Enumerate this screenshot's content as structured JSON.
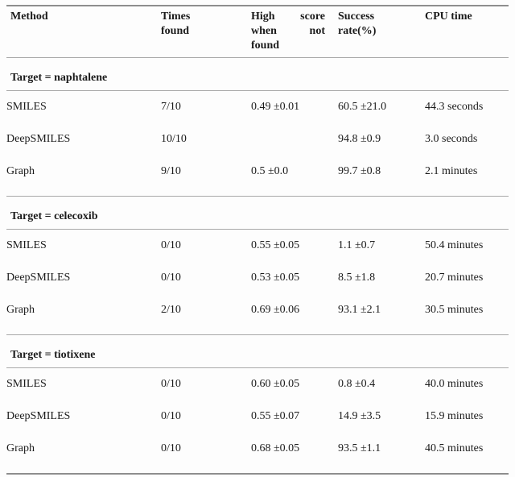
{
  "page": {
    "background_color": "#fdfdfd",
    "text_color": "#1b1b1b",
    "heavy_rule_color": "#8e8e8e",
    "light_rule_color": "#a8a8a8"
  },
  "table": {
    "columns": [
      "Method",
      "Times found",
      "High score when not found",
      "Success rate(%)",
      "CPU time"
    ],
    "sections": [
      {
        "title": "Target = naphtalene",
        "rows": [
          {
            "cells": [
              "SMILES",
              "7/10",
              "0.49 ±0.01",
              "60.5 ±21.0",
              "44.3 seconds"
            ]
          },
          {
            "cells": [
              "DeepSMILES",
              "10/10",
              "",
              "94.8 ±0.9",
              "3.0 seconds"
            ]
          },
          {
            "cells": [
              "Graph",
              "9/10",
              "0.5 ±0.0",
              "99.7 ±0.8",
              "2.1 minutes"
            ]
          }
        ]
      },
      {
        "title": "Target = celecoxib",
        "rows": [
          {
            "cells": [
              "SMILES",
              "0/10",
              "0.55 ±0.05",
              "1.1 ±0.7",
              "50.4 minutes"
            ]
          },
          {
            "cells": [
              "DeepSMILES",
              "0/10",
              "0.53 ±0.05",
              "8.5 ±1.8",
              "20.7 minutes"
            ]
          },
          {
            "cells": [
              "Graph",
              "2/10",
              "0.69 ±0.06",
              "93.1 ±2.1",
              "30.5 minutes"
            ]
          }
        ]
      },
      {
        "title": "Target = tiotixene",
        "rows": [
          {
            "cells": [
              "SMILES",
              "0/10",
              "0.60 ±0.05",
              "0.8 ±0.4",
              "40.0 minutes"
            ]
          },
          {
            "cells": [
              "DeepSMILES",
              "0/10",
              "0.55 ±0.07",
              "14.9 ±3.5",
              "15.9 minutes"
            ]
          },
          {
            "cells": [
              "Graph",
              "0/10",
              "0.68 ±0.05",
              "93.5 ±1.1",
              "40.5 minutes"
            ]
          }
        ]
      }
    ]
  }
}
